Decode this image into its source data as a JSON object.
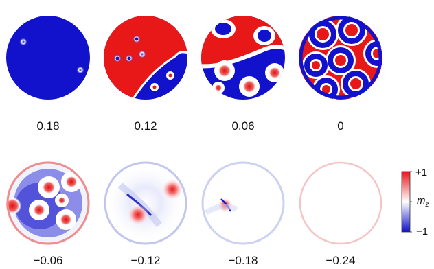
{
  "panels": [
    {
      "label": "0.18"
    },
    {
      "label": "0.12"
    },
    {
      "label": "0.06"
    },
    {
      "label": "0"
    },
    {
      "label": "−0.06"
    },
    {
      "label": "−0.12"
    },
    {
      "label": "−0.18"
    },
    {
      "label": "−0.24"
    }
  ],
  "colorbar": {
    "max_label": "+1",
    "min_label": "−1",
    "quantity_label": "m",
    "quantity_subscript": "z",
    "color_max": "#e8161b",
    "color_mid": "#ffffff",
    "color_min": "#1010c8"
  }
}
